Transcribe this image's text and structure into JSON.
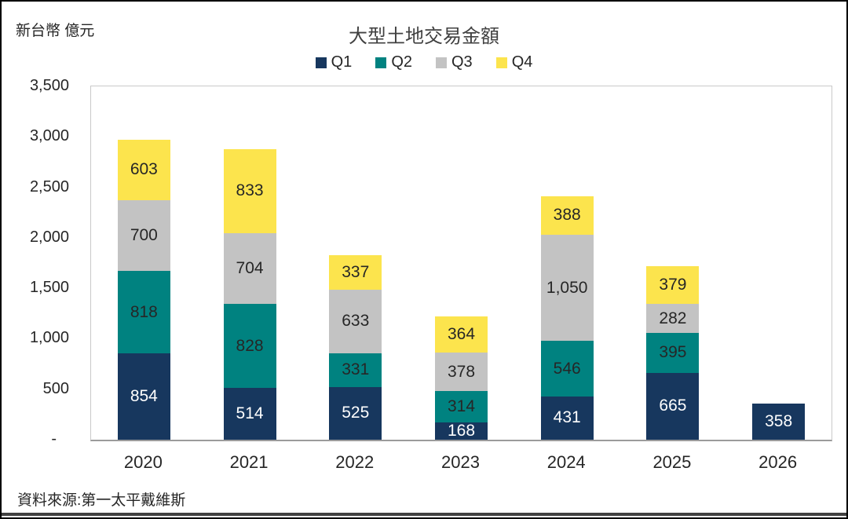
{
  "unit_label": "新台幣 億元",
  "title": "大型土地交易金額",
  "source": "資料來源:第一太平戴維斯",
  "colors": {
    "q1_navy": "#17375E",
    "q2_teal": "#008280",
    "q3_gray": "#C3C3C3",
    "q4_yellow": "#FCE44D",
    "label_dark": "#262626",
    "label_light": "#FFFFFF"
  },
  "chart_data": {
    "type": "bar",
    "stacked": true,
    "title": "大型土地交易金額",
    "ylabel": "新台幣 億元",
    "xlabel": "",
    "categories": [
      "2020",
      "2021",
      "2022",
      "2023",
      "2024",
      "2025",
      "2026"
    ],
    "series": [
      {
        "name": "Q1",
        "color": "#17375E",
        "label_color": "#FFFFFF",
        "values": [
          854,
          514,
          525,
          168,
          431,
          665,
          358
        ]
      },
      {
        "name": "Q2",
        "color": "#008280",
        "label_color": "#262626",
        "values": [
          818,
          828,
          331,
          314,
          546,
          395,
          null
        ]
      },
      {
        "name": "Q3",
        "color": "#C3C3C3",
        "label_color": "#262626",
        "values": [
          700,
          704,
          633,
          378,
          1050,
          282,
          null
        ]
      },
      {
        "name": "Q4",
        "color": "#FCE44D",
        "label_color": "#262626",
        "values": [
          603,
          833,
          337,
          364,
          388,
          379,
          null
        ]
      }
    ],
    "totals": [
      2975,
      2879,
      1826,
      1224,
      2415,
      1721,
      358
    ],
    "ylim": [
      0,
      3500
    ],
    "ytick_interval": 500,
    "ytick_labels": [
      "-",
      "500",
      "1,000",
      "1,500",
      "2,000",
      "2,500",
      "3,000",
      "3,500"
    ],
    "legend_position": "top-center",
    "grid": false,
    "data_labels": true
  }
}
